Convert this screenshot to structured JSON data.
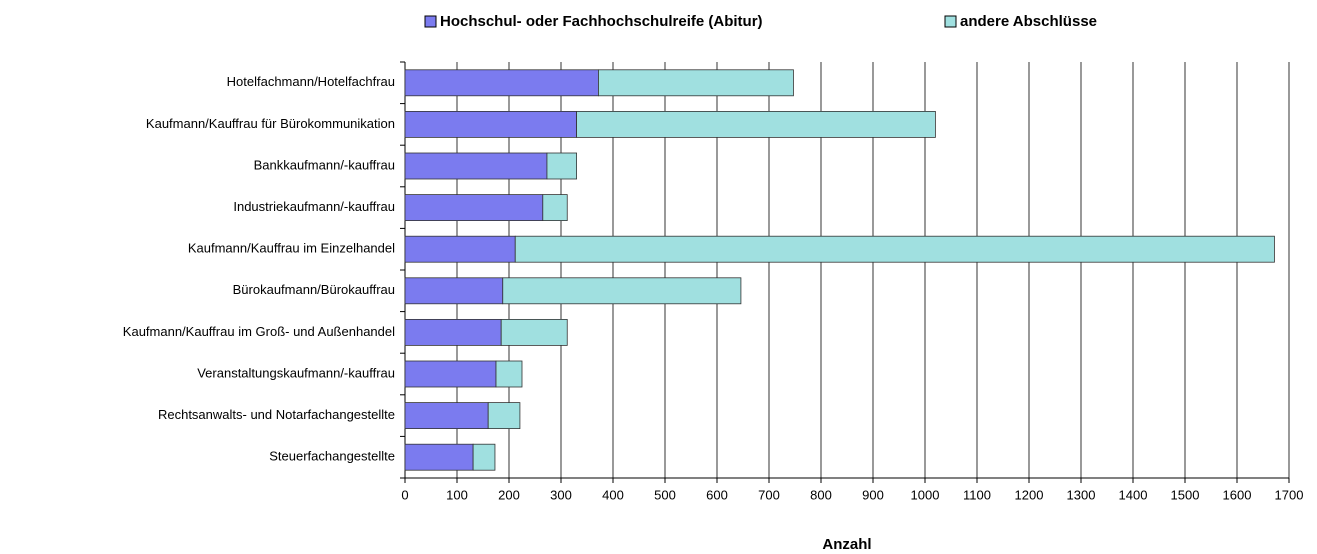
{
  "chart_data": {
    "type": "bar",
    "orientation": "horizontal",
    "stacked": true,
    "x_label": "Anzahl",
    "categories": [
      "Hotelfachmann/Hotelfachfrau",
      "Kaufmann/Kauffrau für Bürokommunikation",
      "Bankkaufmann/-kauffrau",
      "Industriekaufmann/-kauffrau",
      "Kaufmann/Kauffrau im Einzelhandel",
      "Bürokaufmann/Bürokauffrau",
      "Kaufmann/Kauffrau im Groß- und Außenhandel",
      "Veranstaltungskaufmann/-kauffrau",
      "Rechtsanwalts- und Notarfachangestellte",
      "Steuerfachangestellte"
    ],
    "series": [
      {
        "name": "Hochschul- oder Fachhochschulreife (Abitur)",
        "color": "#7b7bef",
        "values": [
          372,
          330,
          273,
          265,
          212,
          188,
          185,
          175,
          160,
          131
        ]
      },
      {
        "name": "andere Abschlüsse",
        "color": "#a0e0e0",
        "values": [
          375,
          690,
          57,
          47,
          1460,
          458,
          127,
          50,
          61,
          42
        ]
      }
    ],
    "xlim": [
      0,
      1700
    ],
    "xticks": [
      0,
      100,
      200,
      300,
      400,
      500,
      600,
      700,
      800,
      900,
      1000,
      1100,
      1200,
      1300,
      1400,
      1500,
      1600,
      1700
    ],
    "grid": true,
    "legend": "top"
  }
}
